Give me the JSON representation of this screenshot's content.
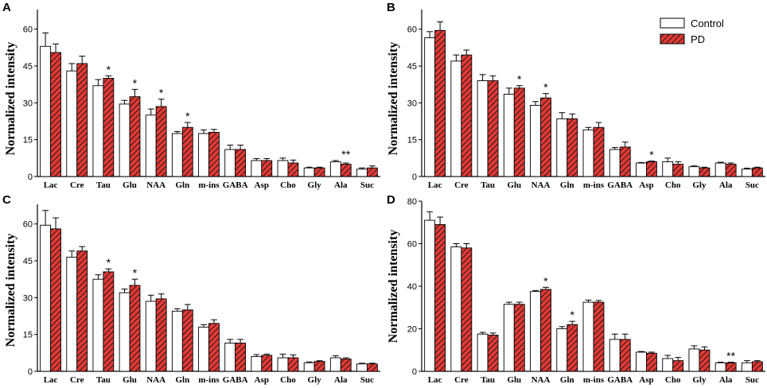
{
  "legend": {
    "control_label": "Control",
    "pd_label": "PD",
    "control_color": "#ffffff",
    "pd_color": "#e53935"
  },
  "chart_data": [
    {
      "panel": "A",
      "type": "bar",
      "ylabel": "Normalized intensity",
      "ylim": [
        0,
        68
      ],
      "yticks": [
        0,
        15,
        30,
        45,
        60
      ],
      "categories": [
        "Lac",
        "Cre",
        "Tau",
        "Glu",
        "NAA",
        "Gln",
        "m-ins",
        "GABA",
        "Asp",
        "Cho",
        "Gly",
        "Ala",
        "Suc"
      ],
      "series": [
        {
          "name": "Control",
          "values": [
            53,
            43,
            37,
            29.5,
            25,
            17.5,
            17.5,
            11,
            6.5,
            6.5,
            3.5,
            6,
            3
          ],
          "errors": [
            5.5,
            3,
            2.5,
            1.5,
            2.5,
            0.8,
            1.5,
            1.8,
            0.8,
            1,
            0.3,
            0.5,
            0.5
          ]
        },
        {
          "name": "PD",
          "values": [
            50.5,
            46,
            40,
            32.5,
            28.5,
            20,
            18,
            11,
            6.5,
            5.5,
            3.5,
            5,
            3.5
          ],
          "errors": [
            3.5,
            3,
            1,
            3,
            3,
            2,
            1.2,
            1.8,
            0.8,
            1.2,
            0.3,
            0.5,
            0.8
          ]
        }
      ],
      "annotations": [
        {
          "category": "Tau",
          "text": "*"
        },
        {
          "category": "Glu",
          "text": "*"
        },
        {
          "category": "NAA",
          "text": "*"
        },
        {
          "category": "Gln",
          "text": "*"
        },
        {
          "category": "Ala",
          "text": "**"
        }
      ]
    },
    {
      "panel": "B",
      "type": "bar",
      "ylabel": "Normalized intensity",
      "ylim": [
        0,
        68
      ],
      "yticks": [
        0,
        15,
        30,
        45,
        60
      ],
      "categories": [
        "Lac",
        "Cre",
        "Tau",
        "Glu",
        "NAA",
        "Gln",
        "m-ins",
        "GABA",
        "Asp",
        "Cho",
        "Gly",
        "Ala",
        "Suc"
      ],
      "series": [
        {
          "name": "Control",
          "values": [
            56.5,
            47,
            39,
            33.5,
            29,
            23.5,
            19,
            11,
            5.5,
            6,
            4,
            5.5,
            3
          ],
          "errors": [
            2.5,
            2.5,
            2.5,
            2.5,
            1.5,
            2.5,
            1,
            0.8,
            0.2,
            1.5,
            0.3,
            0.3,
            0.4
          ]
        },
        {
          "name": "PD",
          "values": [
            59.5,
            49.5,
            39,
            36,
            32,
            23.5,
            20,
            12,
            6,
            5,
            3.5,
            5,
            3.5
          ],
          "errors": [
            3.5,
            2,
            2,
            1,
            1.8,
            2,
            2,
            2,
            0.3,
            1,
            0.3,
            0.5,
            0.3
          ]
        }
      ],
      "annotations": [
        {
          "category": "Glu",
          "text": "*"
        },
        {
          "category": "NAA",
          "text": "*"
        },
        {
          "category": "Asp",
          "text": "*"
        }
      ]
    },
    {
      "panel": "C",
      "type": "bar",
      "ylabel": "Normalized intensity",
      "ylim": [
        0,
        68
      ],
      "yticks": [
        0,
        15,
        30,
        45,
        60
      ],
      "categories": [
        "Lac",
        "Cre",
        "Tau",
        "Glu",
        "NAA",
        "Gln",
        "m-ins",
        "GABA",
        "Asp",
        "Cho",
        "Gly",
        "Ala",
        "Suc"
      ],
      "series": [
        {
          "name": "Control",
          "values": [
            59.5,
            46.5,
            37.5,
            32,
            28.5,
            24.5,
            18,
            11.5,
            6,
            5.5,
            3.5,
            5.5,
            3
          ],
          "errors": [
            6,
            2.5,
            1.8,
            1.5,
            2.5,
            1,
            1,
            1.5,
            0.8,
            1.5,
            0.3,
            0.8,
            0.3
          ]
        },
        {
          "name": "PD",
          "values": [
            58,
            49,
            40.5,
            35,
            29.5,
            25,
            19.5,
            11.5,
            6.5,
            5.5,
            4,
            5,
            3
          ],
          "errors": [
            4.5,
            1.8,
            1.2,
            2.5,
            2,
            2.2,
            1.5,
            1.5,
            0.5,
            1.2,
            0.3,
            0.5,
            0.3
          ]
        }
      ],
      "annotations": [
        {
          "category": "Tau",
          "text": "*"
        },
        {
          "category": "Glu",
          "text": "*"
        }
      ]
    },
    {
      "panel": "D",
      "type": "bar",
      "ylabel": "Normalized intensity",
      "ylim": [
        0,
        80
      ],
      "yticks": [
        0,
        20,
        40,
        60,
        80
      ],
      "categories": [
        "Lac",
        "Cre",
        "Tau",
        "Glu",
        "NAA",
        "Gln",
        "m-ins",
        "GABA",
        "Asp",
        "Cho",
        "Gly",
        "Ala",
        "Suc"
      ],
      "series": [
        {
          "name": "Control",
          "values": [
            71,
            58.5,
            17.5,
            31.5,
            37.5,
            20,
            32.5,
            15,
            9,
            6,
            10.5,
            4,
            4
          ],
          "errors": [
            4,
            1.5,
            0.8,
            1,
            0.5,
            1,
            1,
            2.5,
            0.3,
            1.5,
            1.5,
            0.3,
            1
          ]
        },
        {
          "name": "PD",
          "values": [
            69,
            58,
            17,
            31.5,
            38.5,
            22,
            32.5,
            15,
            8.5,
            5,
            10,
            4,
            4.5
          ],
          "errors": [
            3.5,
            2,
            1,
            1,
            1,
            1.5,
            0.8,
            2.5,
            0.5,
            1.5,
            1.5,
            0.3,
            0.5
          ]
        }
      ],
      "annotations": [
        {
          "category": "NAA",
          "text": "*"
        },
        {
          "category": "Gln",
          "text": "*"
        },
        {
          "category": "Ala",
          "text": "**"
        }
      ]
    }
  ]
}
